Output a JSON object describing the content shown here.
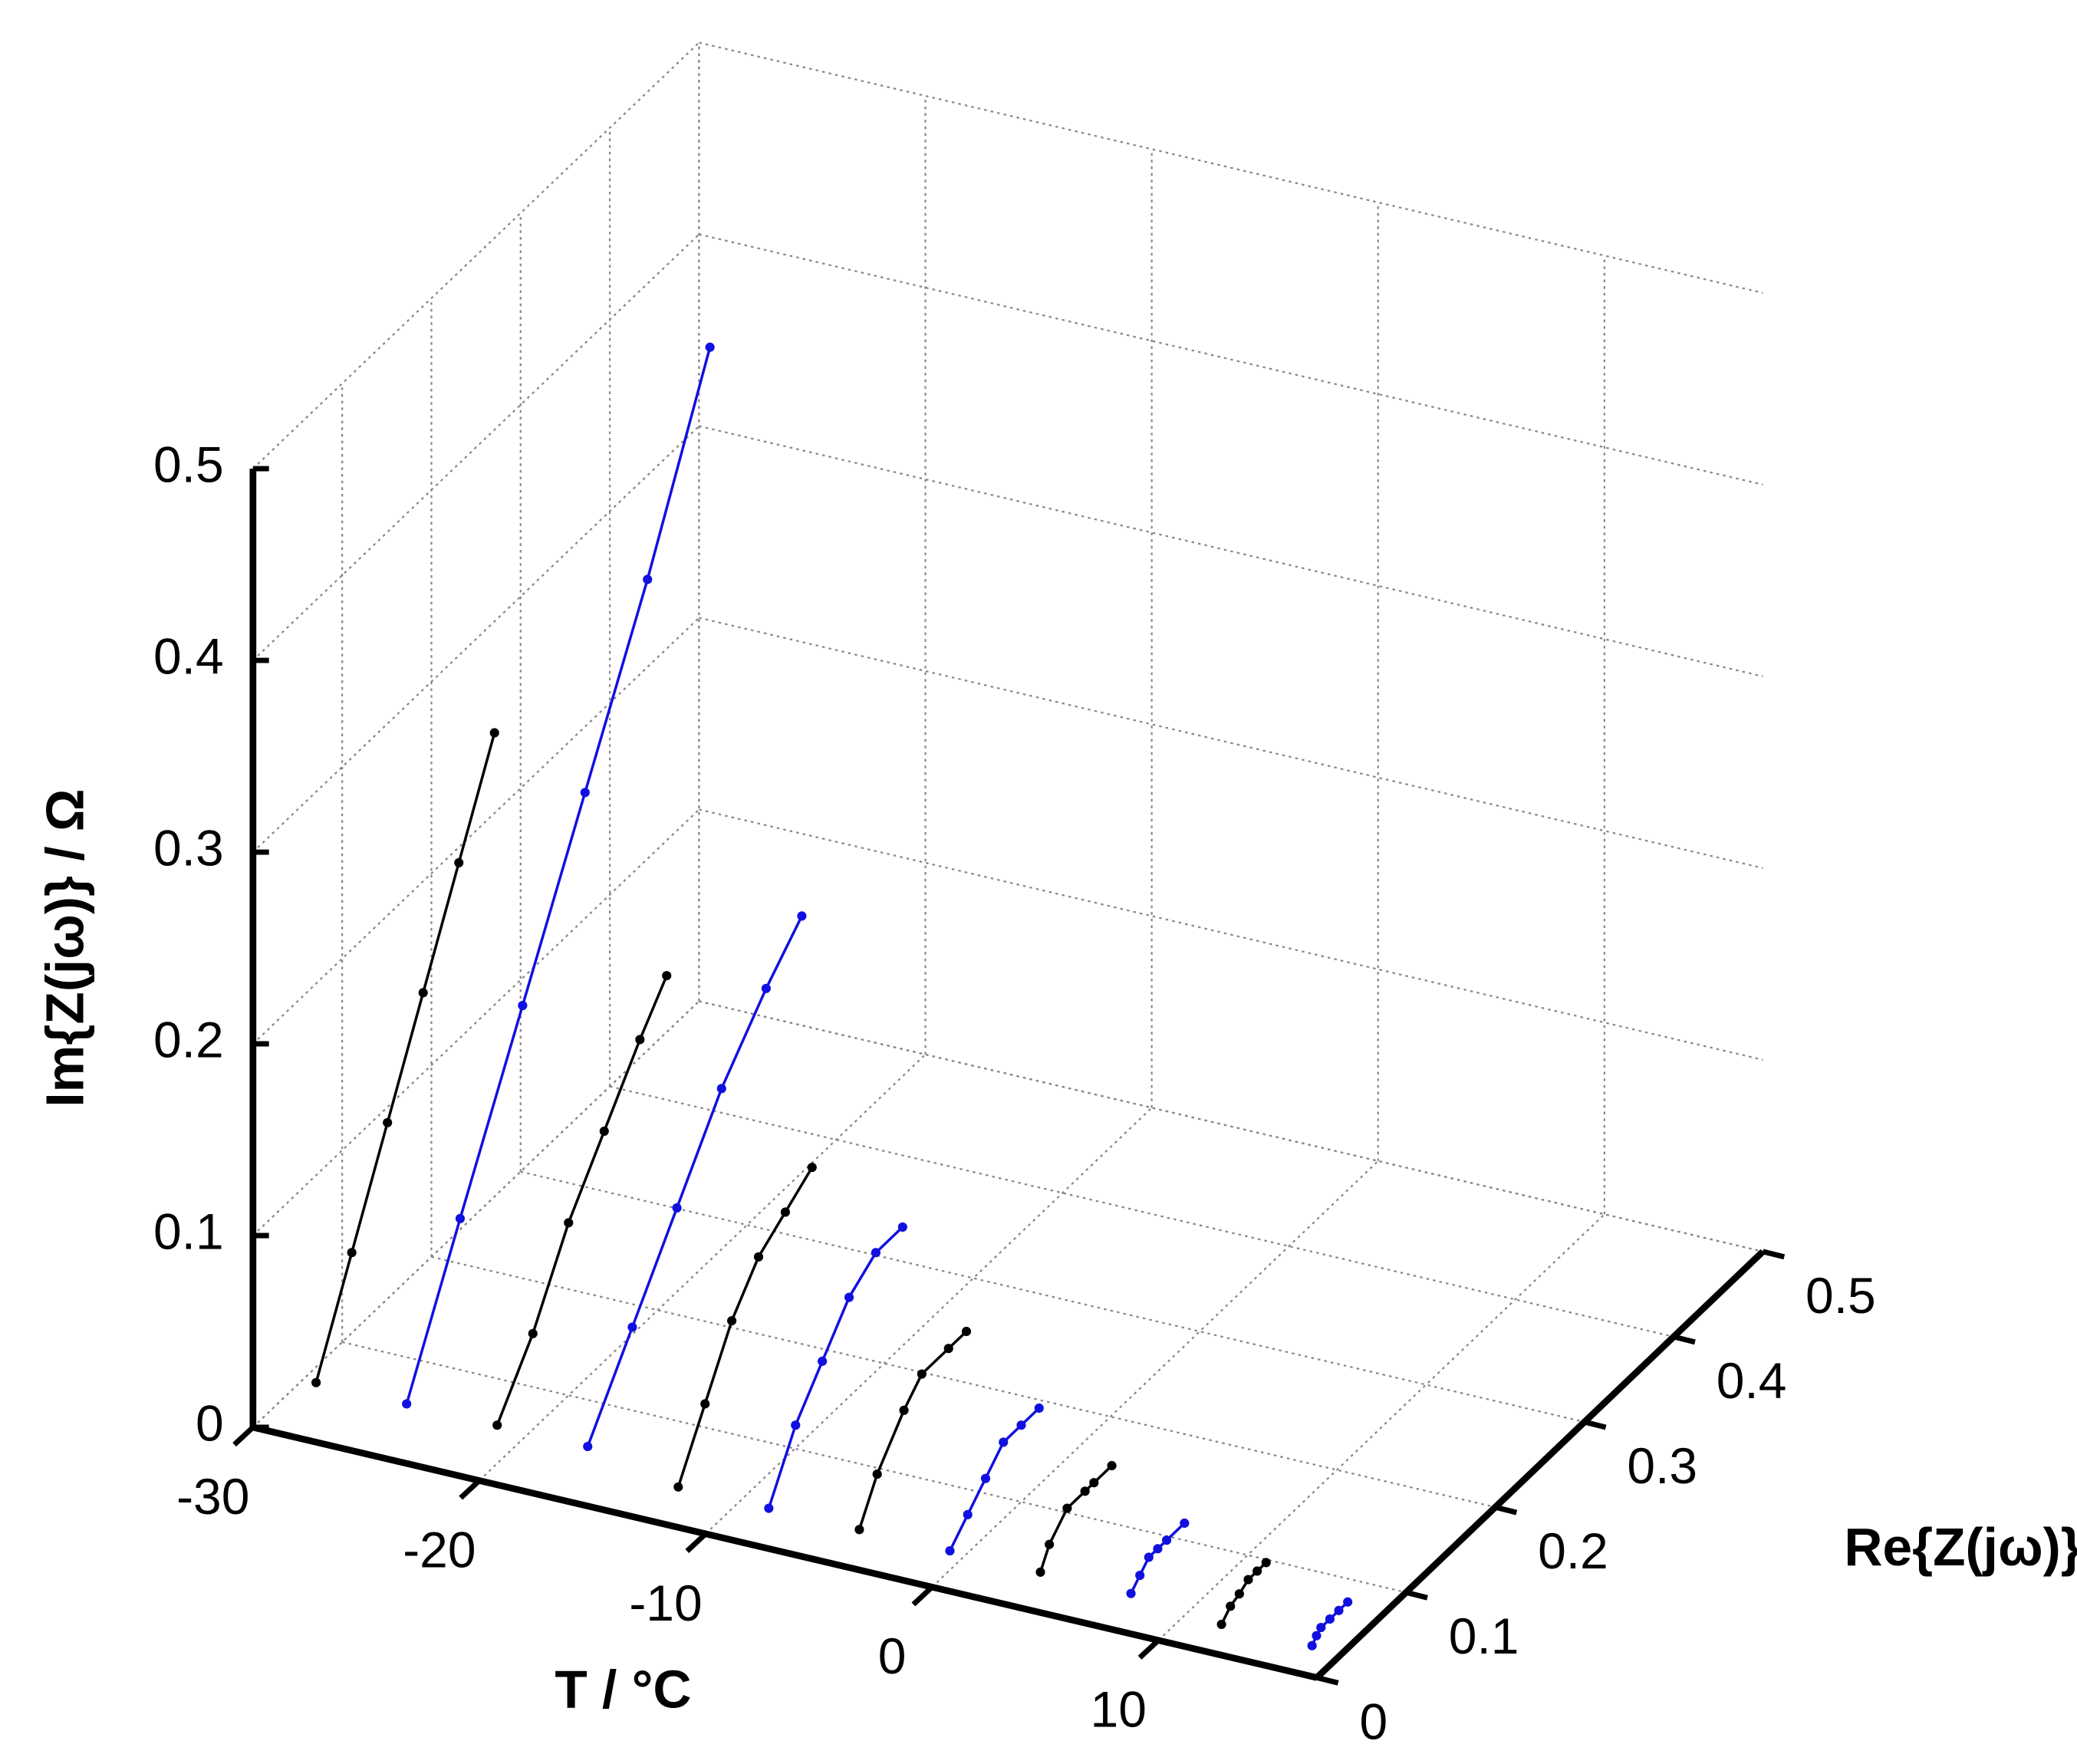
{
  "chart_data": {
    "type": "line3d",
    "xlabel": "T / °C",
    "ylabel": "Re{Z(jω)} /  Ω",
    "zlabel": "Im{Z(jω)} /  Ω",
    "xlim": [
      -30,
      17
    ],
    "xticks": [
      -30,
      -20,
      -10,
      0,
      10
    ],
    "ylim": [
      0,
      0.5
    ],
    "yticks": [
      0,
      0.1,
      0.2,
      0.3,
      0.4,
      0.5
    ],
    "zlim": [
      0,
      0.5
    ],
    "zticks": [
      0,
      0.1,
      0.2,
      0.3,
      0.4,
      0.5
    ],
    "grid": true,
    "series": [
      {
        "t": -28,
        "color": "#000000",
        "re": [
          0.02,
          0.06,
          0.1,
          0.14,
          0.18,
          0.22
        ],
        "im": [
          0.02,
          0.07,
          0.12,
          0.17,
          0.22,
          0.27
        ]
      },
      {
        "t": -24,
        "color": "#1010e0",
        "re": [
          0.02,
          0.08,
          0.15,
          0.22,
          0.29,
          0.36
        ],
        "im": [
          0.02,
          0.09,
          0.17,
          0.25,
          0.33,
          0.42
        ]
      },
      {
        "t": -20,
        "color": "#000000",
        "re": [
          0.02,
          0.06,
          0.1,
          0.14,
          0.18,
          0.21
        ],
        "im": [
          0.02,
          0.05,
          0.09,
          0.12,
          0.15,
          0.17
        ]
      },
      {
        "t": -16,
        "color": "#1010e0",
        "re": [
          0.02,
          0.07,
          0.12,
          0.17,
          0.22,
          0.26
        ],
        "im": [
          0.02,
          0.06,
          0.1,
          0.14,
          0.17,
          0.19
        ]
      },
      {
        "t": -12,
        "color": "#000000",
        "re": [
          0.02,
          0.05,
          0.08,
          0.11,
          0.14,
          0.17
        ],
        "im": [
          0.01,
          0.04,
          0.07,
          0.09,
          0.1,
          0.11
        ]
      },
      {
        "t": -8,
        "color": "#1010e0",
        "re": [
          0.02,
          0.05,
          0.08,
          0.11,
          0.14,
          0.17
        ],
        "im": [
          0.01,
          0.04,
          0.06,
          0.08,
          0.09,
          0.09
        ]
      },
      {
        "t": -4,
        "color": "#000000",
        "re": [
          0.02,
          0.04,
          0.07,
          0.09,
          0.12,
          0.14
        ],
        "im": [
          0.01,
          0.03,
          0.05,
          0.06,
          0.06,
          0.06
        ]
      },
      {
        "t": 0,
        "color": "#1010e0",
        "re": [
          0.02,
          0.04,
          0.06,
          0.08,
          0.1,
          0.12
        ],
        "im": [
          0.01,
          0.02,
          0.03,
          0.04,
          0.04,
          0.04
        ]
      },
      {
        "t": 4,
        "color": "#000000",
        "re": [
          0.02,
          0.03,
          0.05,
          0.07,
          0.08,
          0.1
        ],
        "im": [
          0.01,
          0.02,
          0.03,
          0.03,
          0.03,
          0.03
        ]
      },
      {
        "t": 8,
        "color": "#1010e0",
        "re": [
          0.02,
          0.03,
          0.04,
          0.05,
          0.06,
          0.08
        ],
        "im": [
          0.01,
          0.015,
          0.02,
          0.02,
          0.02,
          0.02
        ]
      },
      {
        "t": 12,
        "color": "#000000",
        "re": [
          0.02,
          0.03,
          0.04,
          0.05,
          0.06,
          0.07
        ],
        "im": [
          0.005,
          0.01,
          0.012,
          0.015,
          0.015,
          0.015
        ]
      },
      {
        "t": 16,
        "color": "#1010e0",
        "re": [
          0.02,
          0.025,
          0.03,
          0.04,
          0.05,
          0.06
        ],
        "im": [
          0.005,
          0.008,
          0.01,
          0.01,
          0.01,
          0.01
        ]
      }
    ]
  }
}
